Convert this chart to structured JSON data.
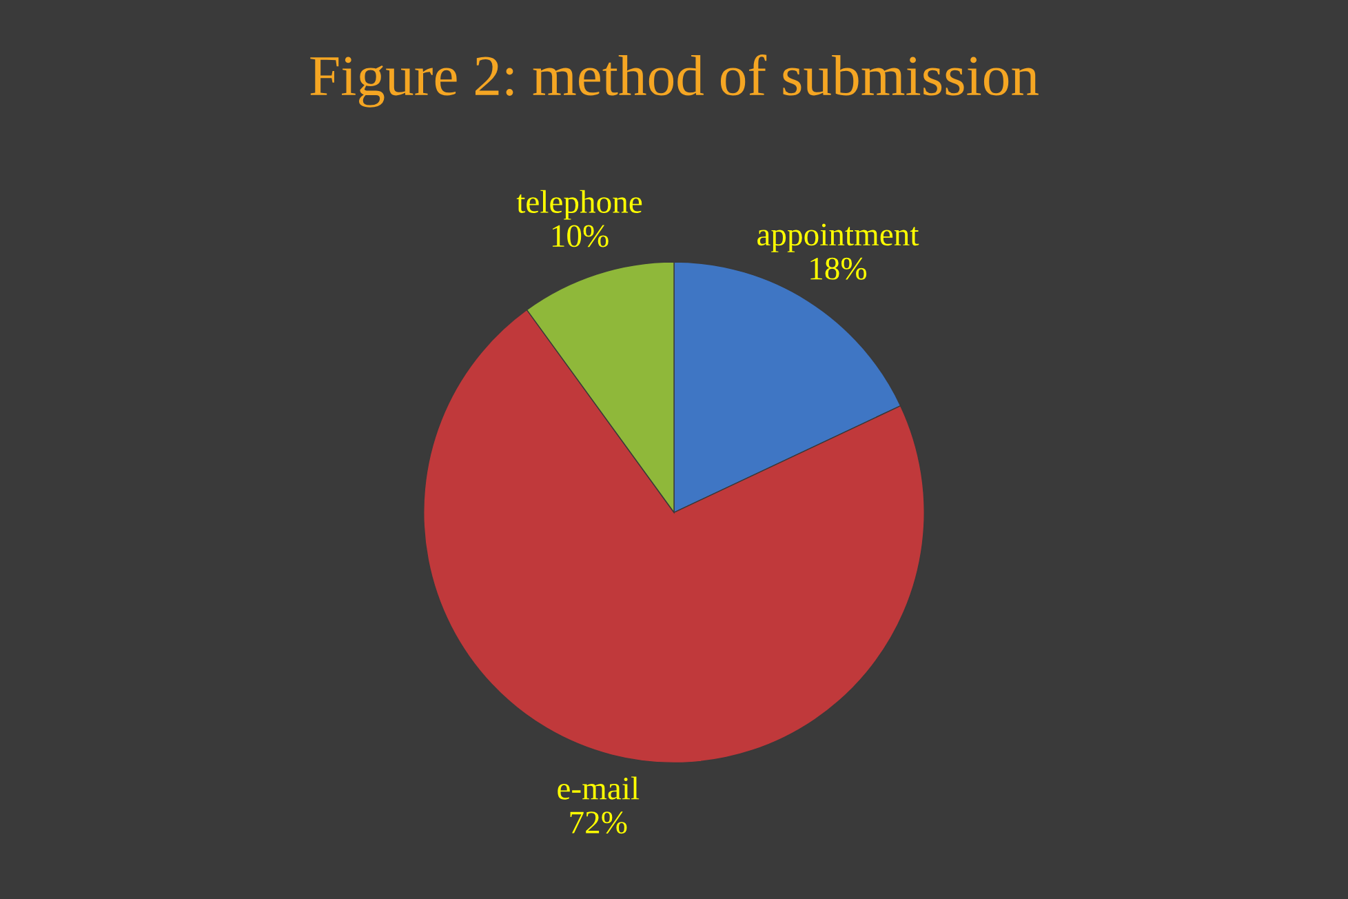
{
  "chart_data": {
    "type": "pie",
    "title": "Figure 2: method of submission",
    "categories": [
      "appointment",
      "e-mail",
      "telephone"
    ],
    "values": [
      18,
      72,
      10
    ],
    "value_labels": [
      "18%",
      "72%",
      "10%"
    ],
    "colors": [
      "#3f76c4",
      "#c0393b",
      "#8fb83a"
    ],
    "legend": false
  }
}
